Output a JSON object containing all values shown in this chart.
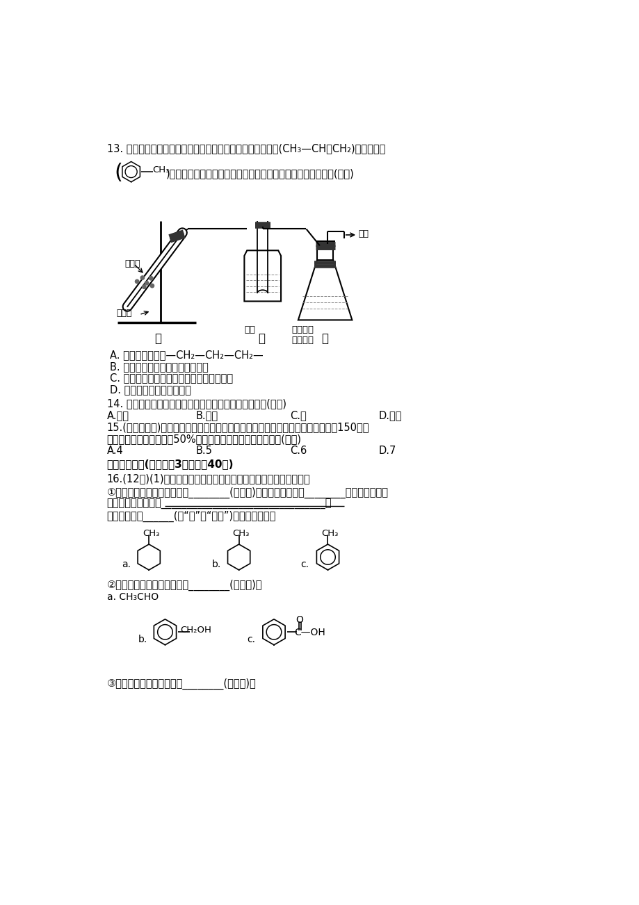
{
  "bg_color": "#ffffff",
  "text_color": "#000000",
  "q13_line1": "13. 加热聚丙烯废塑料可以得到煸、氢气、甲烷、乙烯、丙烯(CH₃—CH＝CH₂)、苯和甲苯",
  "q13_line2_tail": ")，用图所示装置探究废旧塑料的再利用。下列叙述不正确的是(　　)",
  "optA": "A. 聚丙烯的锹节是—CH₂—CH₂—CH₂—",
  "optB": "B. 装置乙的试管中可收集到芳香烃",
  "optC": "C. 装置丙中的试剂可吸收烯烃以制取卤代烃",
  "optD": "D. 最后收集的气体可作燃料",
  "label_wasteplastic": "废塑料",
  "label_heat": "加强热",
  "label_collect": "收集",
  "label_coldwater": "冷水",
  "label_brccl4": "溨的四氯\n化碳溶液",
  "label_jia": "甲",
  "label_yi": "乙",
  "label_bing": "丙",
  "q14": "14. 等质量的下列有机物充分燃烧时，消耗氧气最多的是(　　)",
  "q14_A": "A.甲烷",
  "q14_B": "B.乙烯",
  "q14_C": "C.苯",
  "q14_D": "D.乙醇",
  "q15_line1": "15.(能力挑战题)某有机化合物仅由煸、氢、氧三种元素组成，其相对分子质量小于150，若",
  "q15_line2": "已知其中氧的质量分数为50%，则分子中煸原子的个数最多为(　　)",
  "q15_A": "A.4",
  "q15_B": "B.5",
  "q15_C": "C.6",
  "q15_D": "D.7",
  "sec2_title": "二、非选择题(本题包括3小题，全40分)",
  "q16_line1": "16.(12分)(1)根据结构对有机物进行分类，有助于对其性质的掌据。",
  "q16_1a": "①下列有机物属于芳香烃的是________(填字母)，它与苯的关系是________，写出苯与溨发",
  "q16_1b": "生反应的化学方程式________________________________，",
  "q16_1c": "预测该芳香烃______(填“能”或“不能”)发生该类反应。",
  "q16_2a": "②下列有机物属于缧酸类的是________(填字母)。",
  "q16_2_label_a": "a. CH₃CHO",
  "q16_3a": "③下列有机物属于糖类的是________(填字母)。"
}
